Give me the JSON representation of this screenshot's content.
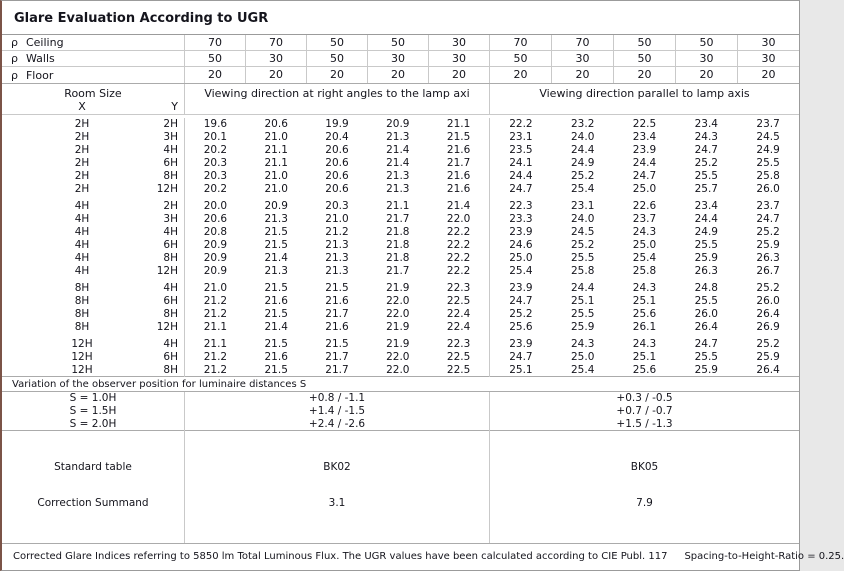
{
  "title": "Glare Evaluation According to UGR",
  "reflectances": {
    "rho_symbol": "ρ",
    "rows": [
      {
        "label": "Ceiling",
        "values": [
          "70",
          "70",
          "50",
          "50",
          "30",
          "70",
          "70",
          "50",
          "50",
          "30"
        ]
      },
      {
        "label": "Walls",
        "values": [
          "50",
          "30",
          "50",
          "30",
          "30",
          "50",
          "30",
          "50",
          "30",
          "30"
        ]
      },
      {
        "label": "Floor",
        "values": [
          "20",
          "20",
          "20",
          "20",
          "20",
          "20",
          "20",
          "20",
          "20",
          "20"
        ]
      }
    ]
  },
  "header": {
    "room_size": "Room Size",
    "x": "X",
    "y": "Y",
    "left_group": "Viewing direction at right angles to the lamp axi",
    "right_group": "Viewing direction parallel to lamp axis"
  },
  "ugr_blocks": [
    {
      "rows": [
        {
          "x": "2H",
          "y": "2H",
          "right_angles": [
            "19.6",
            "20.6",
            "19.9",
            "20.9",
            "21.1"
          ],
          "parallel": [
            "22.2",
            "23.2",
            "22.5",
            "23.4",
            "23.7"
          ]
        },
        {
          "x": "2H",
          "y": "3H",
          "right_angles": [
            "20.1",
            "21.0",
            "20.4",
            "21.3",
            "21.5"
          ],
          "parallel": [
            "23.1",
            "24.0",
            "23.4",
            "24.3",
            "24.5"
          ]
        },
        {
          "x": "2H",
          "y": "4H",
          "right_angles": [
            "20.2",
            "21.1",
            "20.6",
            "21.4",
            "21.6"
          ],
          "parallel": [
            "23.5",
            "24.4",
            "23.9",
            "24.7",
            "24.9"
          ]
        },
        {
          "x": "2H",
          "y": "6H",
          "right_angles": [
            "20.3",
            "21.1",
            "20.6",
            "21.4",
            "21.7"
          ],
          "parallel": [
            "24.1",
            "24.9",
            "24.4",
            "25.2",
            "25.5"
          ]
        },
        {
          "x": "2H",
          "y": "8H",
          "right_angles": [
            "20.3",
            "21.0",
            "20.6",
            "21.3",
            "21.6"
          ],
          "parallel": [
            "24.4",
            "25.2",
            "24.7",
            "25.5",
            "25.8"
          ]
        },
        {
          "x": "2H",
          "y": "12H",
          "right_angles": [
            "20.2",
            "21.0",
            "20.6",
            "21.3",
            "21.6"
          ],
          "parallel": [
            "24.7",
            "25.4",
            "25.0",
            "25.7",
            "26.0"
          ]
        }
      ]
    },
    {
      "rows": [
        {
          "x": "4H",
          "y": "2H",
          "right_angles": [
            "20.0",
            "20.9",
            "20.3",
            "21.1",
            "21.4"
          ],
          "parallel": [
            "22.3",
            "23.1",
            "22.6",
            "23.4",
            "23.7"
          ]
        },
        {
          "x": "4H",
          "y": "3H",
          "right_angles": [
            "20.6",
            "21.3",
            "21.0",
            "21.7",
            "22.0"
          ],
          "parallel": [
            "23.3",
            "24.0",
            "23.7",
            "24.4",
            "24.7"
          ]
        },
        {
          "x": "4H",
          "y": "4H",
          "right_angles": [
            "20.8",
            "21.5",
            "21.2",
            "21.8",
            "22.2"
          ],
          "parallel": [
            "23.9",
            "24.5",
            "24.3",
            "24.9",
            "25.2"
          ]
        },
        {
          "x": "4H",
          "y": "6H",
          "right_angles": [
            "20.9",
            "21.5",
            "21.3",
            "21.8",
            "22.2"
          ],
          "parallel": [
            "24.6",
            "25.2",
            "25.0",
            "25.5",
            "25.9"
          ]
        },
        {
          "x": "4H",
          "y": "8H",
          "right_angles": [
            "20.9",
            "21.4",
            "21.3",
            "21.8",
            "22.2"
          ],
          "parallel": [
            "25.0",
            "25.5",
            "25.4",
            "25.9",
            "26.3"
          ]
        },
        {
          "x": "4H",
          "y": "12H",
          "right_angles": [
            "20.9",
            "21.3",
            "21.3",
            "21.7",
            "22.2"
          ],
          "parallel": [
            "25.4",
            "25.8",
            "25.8",
            "26.3",
            "26.7"
          ]
        }
      ]
    },
    {
      "rows": [
        {
          "x": "8H",
          "y": "4H",
          "right_angles": [
            "21.0",
            "21.5",
            "21.5",
            "21.9",
            "22.3"
          ],
          "parallel": [
            "23.9",
            "24.4",
            "24.3",
            "24.8",
            "25.2"
          ]
        },
        {
          "x": "8H",
          "y": "6H",
          "right_angles": [
            "21.2",
            "21.6",
            "21.6",
            "22.0",
            "22.5"
          ],
          "parallel": [
            "24.7",
            "25.1",
            "25.1",
            "25.5",
            "26.0"
          ]
        },
        {
          "x": "8H",
          "y": "8H",
          "right_angles": [
            "21.2",
            "21.5",
            "21.7",
            "22.0",
            "22.4"
          ],
          "parallel": [
            "25.2",
            "25.5",
            "25.6",
            "26.0",
            "26.4"
          ]
        },
        {
          "x": "8H",
          "y": "12H",
          "right_angles": [
            "21.1",
            "21.4",
            "21.6",
            "21.9",
            "22.4"
          ],
          "parallel": [
            "25.6",
            "25.9",
            "26.1",
            "26.4",
            "26.9"
          ]
        }
      ]
    },
    {
      "rows": [
        {
          "x": "12H",
          "y": "4H",
          "right_angles": [
            "21.1",
            "21.5",
            "21.5",
            "21.9",
            "22.3"
          ],
          "parallel": [
            "23.9",
            "24.3",
            "24.3",
            "24.7",
            "25.2"
          ]
        },
        {
          "x": "12H",
          "y": "6H",
          "right_angles": [
            "21.2",
            "21.6",
            "21.7",
            "22.0",
            "22.5"
          ],
          "parallel": [
            "24.7",
            "25.0",
            "25.1",
            "25.5",
            "25.9"
          ]
        },
        {
          "x": "12H",
          "y": "8H",
          "right_angles": [
            "21.2",
            "21.5",
            "21.7",
            "22.0",
            "22.5"
          ],
          "parallel": [
            "25.1",
            "25.4",
            "25.6",
            "25.9",
            "26.4"
          ]
        }
      ]
    }
  ],
  "variation_note": "Variation of the observer position for luminaire distances S",
  "variation_rows": [
    {
      "label": "S = 1.0H",
      "right_angles": "+0.8 / -1.1",
      "parallel": "+0.3 / -0.5"
    },
    {
      "label": "S = 1.5H",
      "right_angles": "+1.4 / -1.5",
      "parallel": "+0.7 / -0.7"
    },
    {
      "label": "S = 2.0H",
      "right_angles": "+2.4 / -2.6",
      "parallel": "+1.5 / -1.3"
    }
  ],
  "summary_rows": [
    {
      "label": "Standard table",
      "right_angles": "BK02",
      "parallel": "BK05"
    },
    {
      "label": "Correction Summand",
      "right_angles": "3.1",
      "parallel": "7.9"
    }
  ],
  "footer": {
    "text": "Corrected Glare Indices referring to 5850 lm Total Luminous Flux. The UGR values have been calculated according to CIE Publ. 117",
    "ratio": "Spacing-to-Height-Ratio = 0.25."
  },
  "colors": {
    "text": "#14141c",
    "grid_light": "#c9c9c9",
    "grid_mid": "#ababab",
    "outer": "#9b9b9b",
    "leftb": "#7b5347",
    "bg": "#ffffff"
  }
}
